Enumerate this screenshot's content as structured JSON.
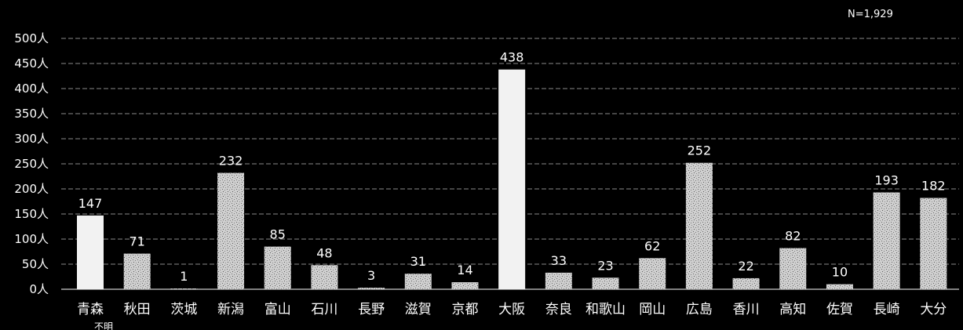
{
  "chart_data": {
    "type": "bar",
    "annotation": "N=1,929",
    "categories": [
      "青森",
      "秋田",
      "茨城",
      "新潟",
      "富山",
      "石川",
      "長野",
      "滋賀",
      "京都",
      "大阪",
      "奈良",
      "和歌山",
      "岡山",
      "広島",
      "香川",
      "高知",
      "佐賀",
      "長崎",
      "大分"
    ],
    "values": [
      147,
      71,
      1,
      232,
      85,
      48,
      3,
      31,
      14,
      438,
      33,
      23,
      62,
      252,
      22,
      82,
      10,
      193,
      182
    ],
    "y_ticks": [
      "0人",
      "50人",
      "100人",
      "150人",
      "200人",
      "250人",
      "300人",
      "350人",
      "400人",
      "450人",
      "500人"
    ],
    "ylim": [
      0,
      500
    ],
    "grid": true,
    "partial_label": "不明",
    "colors": {
      "background": "#000000",
      "bar_light": "#f2f2f2",
      "bar_textured": "#c8c8c8",
      "text": "#ffffff",
      "grid": "#8a8a8a"
    }
  }
}
